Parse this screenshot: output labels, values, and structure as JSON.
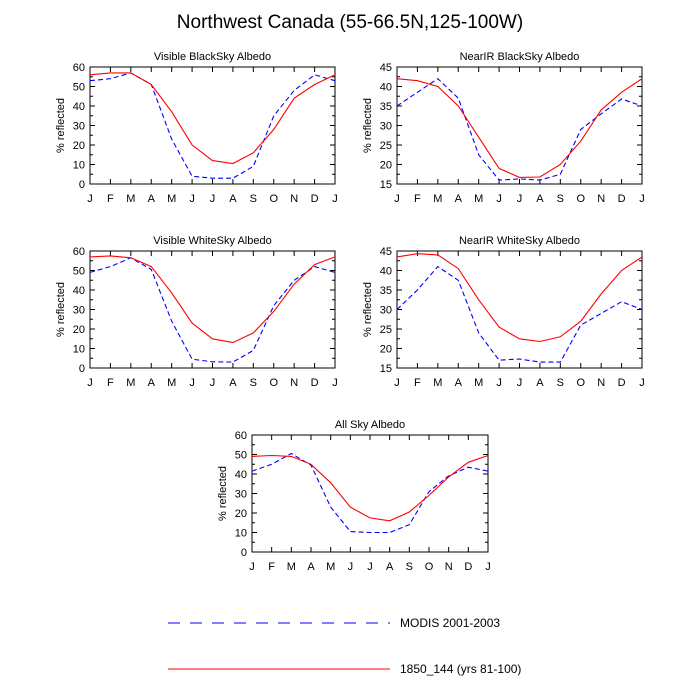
{
  "page": {
    "title": "Northwest Canada (55-66.5N,125-100W)"
  },
  "months": [
    "J",
    "F",
    "M",
    "A",
    "M",
    "J",
    "J",
    "A",
    "S",
    "O",
    "N",
    "D",
    "J"
  ],
  "legend": [
    {
      "label": "MODIS 2001-2003",
      "color": "#0000ff",
      "dash": "dashed"
    },
    {
      "label": "1850_144 (yrs 81-100)",
      "color": "#ff0000",
      "dash": "solid"
    }
  ],
  "chart_data": [
    {
      "type": "line",
      "title": "Visible BlackSky Albedo",
      "ylabel": "% reflected",
      "ylim": [
        0,
        60
      ],
      "yticks": [
        0,
        10,
        20,
        30,
        40,
        50,
        60
      ],
      "x": [
        "J",
        "F",
        "M",
        "A",
        "M",
        "J",
        "J",
        "A",
        "S",
        "O",
        "N",
        "D",
        "J"
      ],
      "series": [
        {
          "name": "MODIS 2001-2003",
          "color": "#0000ff",
          "dash": "dashed",
          "values": [
            53,
            54,
            57,
            51,
            23,
            4,
            3,
            3,
            9,
            35,
            48,
            56,
            53
          ]
        },
        {
          "name": "1850_144 (yrs 81-100)",
          "color": "#ff0000",
          "dash": "solid",
          "values": [
            56,
            57,
            57,
            51,
            37,
            20,
            12,
            10.5,
            16,
            28,
            44,
            51,
            56
          ]
        }
      ]
    },
    {
      "type": "line",
      "title": "NearIR BlackSky Albedo",
      "ylabel": "% reflected",
      "ylim": [
        15,
        45
      ],
      "yticks": [
        15,
        20,
        25,
        30,
        35,
        40,
        45
      ],
      "x": [
        "J",
        "F",
        "M",
        "A",
        "M",
        "J",
        "J",
        "A",
        "S",
        "O",
        "N",
        "D",
        "J"
      ],
      "series": [
        {
          "name": "MODIS 2001-2003",
          "color": "#0000ff",
          "dash": "dashed",
          "values": [
            35,
            38.5,
            42,
            37,
            22.5,
            16,
            16.3,
            16,
            17.5,
            29,
            33,
            36.8,
            35
          ]
        },
        {
          "name": "1850_144 (yrs 81-100)",
          "color": "#ff0000",
          "dash": "solid",
          "values": [
            42,
            41.5,
            40,
            35,
            27,
            19,
            16.7,
            16.8,
            20,
            26,
            34,
            38.5,
            42
          ]
        }
      ]
    },
    {
      "type": "line",
      "title": "Visible WhiteSky Albedo",
      "ylabel": "% reflected",
      "ylim": [
        0,
        60
      ],
      "yticks": [
        0,
        10,
        20,
        30,
        40,
        50,
        60
      ],
      "x": [
        "J",
        "F",
        "M",
        "A",
        "M",
        "J",
        "J",
        "A",
        "S",
        "O",
        "N",
        "D",
        "J"
      ],
      "series": [
        {
          "name": "MODIS 2001-2003",
          "color": "#0000ff",
          "dash": "dashed",
          "values": [
            49,
            52,
            56.5,
            50.5,
            24,
            4.5,
            3.2,
            3,
            9,
            32,
            45,
            52,
            49
          ]
        },
        {
          "name": "1850_144 (yrs 81-100)",
          "color": "#ff0000",
          "dash": "solid",
          "values": [
            57,
            57.5,
            56.5,
            52,
            38.5,
            23,
            15,
            13,
            18,
            29,
            43,
            53,
            57
          ]
        }
      ]
    },
    {
      "type": "line",
      "title": "NearIR WhiteSky Albedo",
      "ylabel": "% reflected",
      "ylim": [
        15,
        45
      ],
      "yticks": [
        15,
        20,
        25,
        30,
        35,
        40,
        45
      ],
      "x": [
        "J",
        "F",
        "M",
        "A",
        "M",
        "J",
        "J",
        "A",
        "S",
        "O",
        "N",
        "D",
        "J"
      ],
      "series": [
        {
          "name": "MODIS 2001-2003",
          "color": "#0000ff",
          "dash": "dashed",
          "values": [
            30,
            35,
            41,
            37.5,
            24,
            17,
            17.3,
            16.5,
            16.5,
            26,
            29,
            32,
            30
          ]
        },
        {
          "name": "1850_144 (yrs 81-100)",
          "color": "#ff0000",
          "dash": "solid",
          "values": [
            43.5,
            44.3,
            44,
            40.5,
            32.5,
            25.5,
            22.5,
            21.8,
            23,
            27,
            34,
            40,
            43.5
          ]
        }
      ]
    },
    {
      "type": "line",
      "title": "All Sky Albedo",
      "ylabel": "% reflected",
      "ylim": [
        0,
        60
      ],
      "yticks": [
        0,
        10,
        20,
        30,
        40,
        50,
        60
      ],
      "x": [
        "J",
        "F",
        "M",
        "A",
        "M",
        "J",
        "J",
        "A",
        "S",
        "O",
        "N",
        "D",
        "J"
      ],
      "series": [
        {
          "name": "MODIS 2001-2003",
          "color": "#0000ff",
          "dash": "dashed",
          "values": [
            41.5,
            45,
            50.5,
            44.5,
            23,
            10.5,
            10,
            10,
            14,
            31,
            39,
            43.5,
            41.5
          ]
        },
        {
          "name": "1850_144 (yrs 81-100)",
          "color": "#ff0000",
          "dash": "solid",
          "values": [
            49,
            49.5,
            49,
            45,
            35.5,
            23,
            17.5,
            16,
            20.5,
            29,
            38.5,
            46,
            49.5
          ]
        }
      ]
    }
  ]
}
